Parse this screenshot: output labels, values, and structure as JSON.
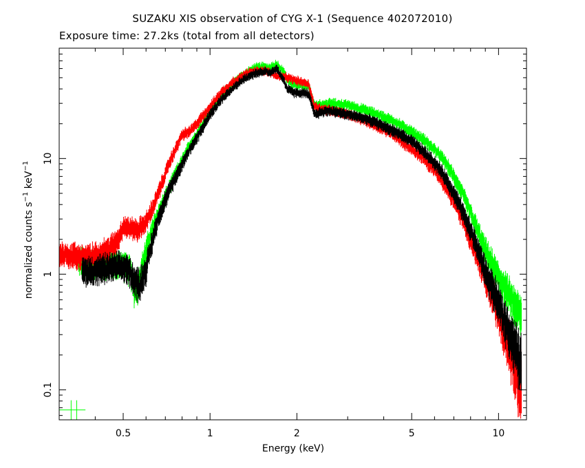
{
  "chart_data": {
    "type": "line",
    "title": "SUZAKU XIS observation of CYG X-1 (Sequence 402072010)",
    "subtitle": "Exposure time: 27.2ks (total from all detectors)",
    "xlabel": "Energy (keV)",
    "ylabel_main": "normalized counts s",
    "ylabel_exp1": "−1",
    "ylabel_mid": " keV",
    "ylabel_exp2": "−1",
    "xscale": "log",
    "yscale": "log",
    "xlim": [
      0.3,
      12.5
    ],
    "ylim": [
      0.055,
      90
    ],
    "x_ticks": [
      {
        "value": 0.5,
        "label": "0.5"
      },
      {
        "value": 1,
        "label": "1"
      },
      {
        "value": 2,
        "label": "2"
      },
      {
        "value": 5,
        "label": "5"
      },
      {
        "value": 10,
        "label": "10"
      }
    ],
    "y_ticks": [
      {
        "value": 0.1,
        "label": "0.1"
      },
      {
        "value": 1,
        "label": "1"
      },
      {
        "value": 10,
        "label": "10"
      }
    ],
    "grid": false,
    "legend": "none",
    "series": [
      {
        "color": "#00ff00",
        "x": [
          0.35,
          0.38,
          0.42,
          0.46,
          0.5,
          0.53,
          0.545,
          0.56,
          0.58,
          0.6,
          0.63,
          0.66,
          0.7,
          0.75,
          0.8,
          0.85,
          0.9,
          1.0,
          1.1,
          1.2,
          1.3,
          1.45,
          1.55,
          1.6,
          1.7,
          1.8,
          1.85,
          1.95,
          2.1,
          2.2,
          2.3,
          2.4,
          2.6,
          3.0,
          3.5,
          4.0,
          4.5,
          5.0,
          5.5,
          6.0,
          6.5,
          7.0,
          7.5,
          8.0,
          8.5,
          9.0,
          10.0,
          11.0,
          12.0
        ],
        "y": [
          1.3,
          1.25,
          1.2,
          1.2,
          1.2,
          1.05,
          0.75,
          0.75,
          1.1,
          1.6,
          2.4,
          3.3,
          4.6,
          6.8,
          9.5,
          13.0,
          16.0,
          26.0,
          36.0,
          45.0,
          53.0,
          62.0,
          63.0,
          60.0,
          66.0,
          56.0,
          48.0,
          43.0,
          43.0,
          42.0,
          29.0,
          29.0,
          30.0,
          29.0,
          26.0,
          23.0,
          20.0,
          17.0,
          14.5,
          12.0,
          9.5,
          7.0,
          5.0,
          3.4,
          2.3,
          1.6,
          0.95,
          0.62,
          0.42
        ]
      },
      {
        "color": "#ff0000",
        "x": [
          0.3,
          0.33,
          0.37,
          0.41,
          0.45,
          0.48,
          0.5,
          0.53,
          0.56,
          0.6,
          0.64,
          0.68,
          0.72,
          0.77,
          0.8,
          0.85,
          0.9,
          1.0,
          1.1,
          1.2,
          1.35,
          1.5,
          1.6,
          1.7,
          1.85,
          2.0,
          2.1,
          2.2,
          2.3,
          2.4,
          2.6,
          3.0,
          3.5,
          4.0,
          4.5,
          5.0,
          5.5,
          6.0,
          6.5,
          7.0,
          7.5,
          8.0,
          8.5,
          9.0,
          10.0,
          11.0,
          12.0
        ],
        "y": [
          1.5,
          1.45,
          1.4,
          1.45,
          1.7,
          2.0,
          2.6,
          2.5,
          2.4,
          2.8,
          4.0,
          6.0,
          9.0,
          13.0,
          16.0,
          17.0,
          20.0,
          28.0,
          38.0,
          46.0,
          55.0,
          58.0,
          56.0,
          52.0,
          50.0,
          47.0,
          46.0,
          44.0,
          28.0,
          27.0,
          26.0,
          24.0,
          21.0,
          18.0,
          15.0,
          12.0,
          10.0,
          8.0,
          6.0,
          4.3,
          3.0,
          2.0,
          1.35,
          0.9,
          0.48,
          0.22,
          0.1
        ]
      },
      {
        "color": "#000000",
        "x": [
          0.36,
          0.38,
          0.42,
          0.46,
          0.5,
          0.53,
          0.55,
          0.57,
          0.6,
          0.63,
          0.66,
          0.7,
          0.75,
          0.8,
          0.85,
          0.9,
          1.0,
          1.1,
          1.2,
          1.3,
          1.45,
          1.55,
          1.6,
          1.7,
          1.8,
          1.85,
          1.95,
          2.1,
          2.2,
          2.3,
          2.4,
          2.6,
          3.0,
          3.5,
          4.0,
          4.5,
          5.0,
          5.5,
          6.0,
          6.5,
          7.0,
          7.5,
          8.0,
          8.5,
          9.0,
          10.0,
          11.0,
          12.0
        ],
        "y": [
          1.05,
          1.05,
          1.1,
          1.15,
          1.15,
          1.05,
          0.85,
          0.8,
          1.1,
          1.9,
          3.0,
          4.4,
          6.5,
          9.0,
          12.0,
          15.0,
          24.0,
          33.0,
          41.0,
          48.0,
          55.0,
          57.0,
          55.0,
          60.0,
          48.0,
          40.0,
          37.0,
          37.0,
          36.0,
          24.0,
          25.0,
          26.0,
          24.0,
          22.0,
          19.0,
          16.5,
          14.0,
          11.5,
          9.2,
          7.0,
          5.0,
          3.5,
          2.4,
          1.6,
          1.05,
          0.55,
          0.3,
          0.16
        ]
      }
    ],
    "error_bar_sample": {
      "color": "#00ff00",
      "x_low": 0.3,
      "x_high": 0.37,
      "y": 0.067,
      "caps": [
        0.33,
        0.345
      ]
    }
  }
}
